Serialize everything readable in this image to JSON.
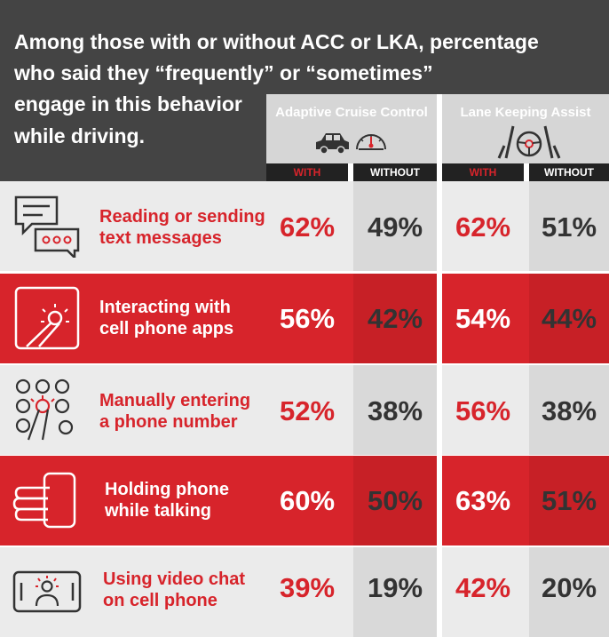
{
  "title_lines": [
    "Among those with or without ACC or LKA, percentage",
    "who said they “frequently” or “sometimes”",
    "engage in this behavior",
    "while driving."
  ],
  "groups": [
    {
      "label": "Adaptive Cruise Control",
      "icon": "car-speedometer-icon"
    },
    {
      "label": "Lane Keeping Assist",
      "icon": "steering-wheel-lane-icon"
    }
  ],
  "subheaders": [
    "WITH",
    "WITHOUT",
    "WITH",
    "WITHOUT"
  ],
  "colors": {
    "red": "#d7242b",
    "dark": "#333333",
    "header_bg": "#444444",
    "light_row": "#ebebeb",
    "light_cell": "#d9d9d9",
    "red_cell": "#c72026"
  },
  "chart_data": {
    "type": "table",
    "title": "Among those with or without ACC or LKA, percentage who said they “frequently” or “sometimes” engage in this behavior while driving.",
    "columns": [
      "Adaptive Cruise Control WITH",
      "Adaptive Cruise Control WITHOUT",
      "Lane Keeping Assist WITH",
      "Lane Keeping Assist WITHOUT"
    ],
    "rows": [
      {
        "label_lines": [
          "Reading or sending",
          "text messages"
        ],
        "icon": "text-message-icon",
        "style": "light",
        "values": [
          "62%",
          "49%",
          "62%",
          "51%"
        ]
      },
      {
        "label_lines": [
          "Interacting with",
          "cell phone apps"
        ],
        "icon": "tap-finger-icon",
        "style": "red",
        "values": [
          "56%",
          "42%",
          "54%",
          "44%"
        ]
      },
      {
        "label_lines": [
          "Manually entering",
          "a phone number"
        ],
        "icon": "keypad-dial-icon",
        "style": "light",
        "values": [
          "52%",
          "38%",
          "56%",
          "38%"
        ]
      },
      {
        "label_lines": [
          "Holding phone",
          "while talking"
        ],
        "icon": "hand-phone-icon",
        "style": "red",
        "values": [
          "60%",
          "50%",
          "63%",
          "51%"
        ]
      },
      {
        "label_lines": [
          "Using video chat",
          "on cell phone"
        ],
        "icon": "video-chat-icon",
        "style": "light",
        "values": [
          "39%",
          "19%",
          "42%",
          "20%"
        ]
      }
    ]
  }
}
